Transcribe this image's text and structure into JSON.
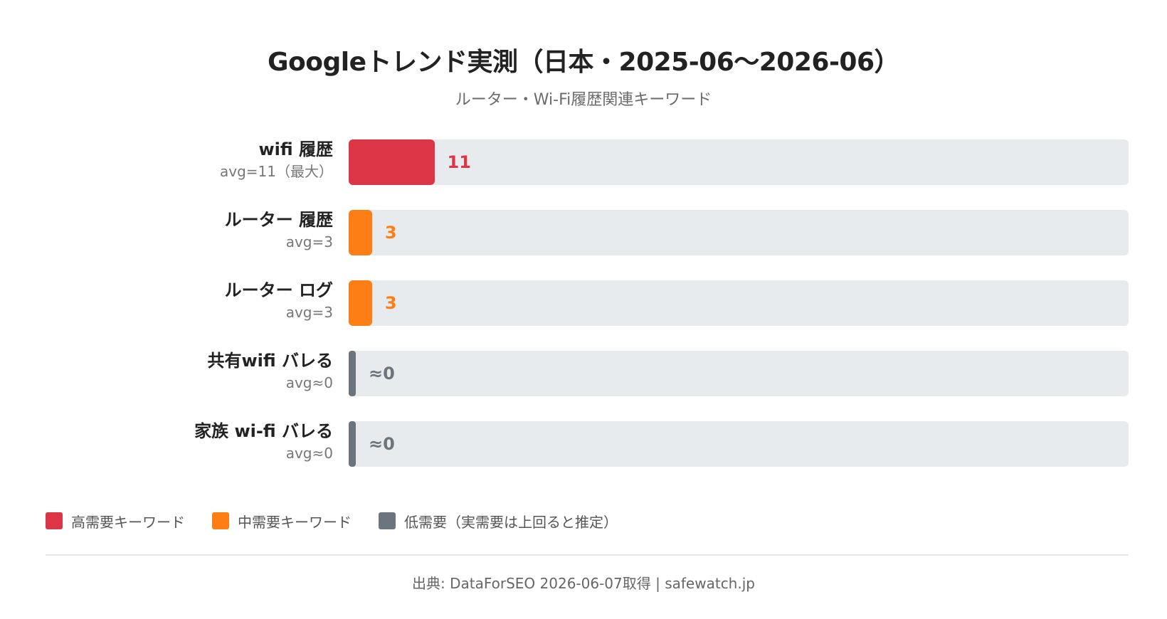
{
  "colors": {
    "high": "#dc3545",
    "mid": "#fd7e14",
    "low": "#6c757d",
    "track": "#e8ebee"
  },
  "chart_data": {
    "type": "bar",
    "orientation": "horizontal",
    "title": "Googleトレンド実測（日本・2025-06〜2026-06）",
    "subtitle": "ルーター・Wi-Fi履歴関連キーワード",
    "xlim": [
      0,
      100
    ],
    "grid": false,
    "legend_position": "bottom-left",
    "categories": [
      "wifi 履歴",
      "ルーター 履歴",
      "ルーター ログ",
      "共有wifi バレる",
      "家族 wi-fi バレる"
    ],
    "values": [
      11,
      3,
      3,
      0,
      0
    ],
    "bars": [
      {
        "name": "wifi 履歴",
        "avg_label": "avg=11（最大）",
        "value": 11,
        "value_label": "11",
        "level": "high"
      },
      {
        "name": "ルーター 履歴",
        "avg_label": "avg=3",
        "value": 3,
        "value_label": "3",
        "level": "mid"
      },
      {
        "name": "ルーター ログ",
        "avg_label": "avg=3",
        "value": 3,
        "value_label": "3",
        "level": "mid"
      },
      {
        "name": "共有wifi バレる",
        "avg_label": "avg≈0",
        "value": 0,
        "value_label": "≈0",
        "level": "low"
      },
      {
        "name": "家族 wi-fi バレる",
        "avg_label": "avg≈0",
        "value": 0,
        "value_label": "≈0",
        "level": "low"
      }
    ],
    "legend": [
      {
        "label": "高需要キーワード",
        "level": "high"
      },
      {
        "label": "中需要キーワード",
        "level": "mid"
      },
      {
        "label": "低需要（実需要は上回ると推定）",
        "level": "low"
      }
    ]
  },
  "footer": "出典: DataForSEO 2026-06-07取得 | safewatch.jp"
}
